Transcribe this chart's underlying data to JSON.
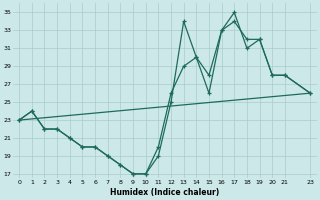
{
  "xlabel": "Humidex (Indice chaleur)",
  "bg_color": "#cce8e8",
  "line_color": "#1e6b5a",
  "grid_color": "#aacccc",
  "xlim": [
    -0.5,
    23.5
  ],
  "ylim": [
    16.5,
    36
  ],
  "yticks": [
    17,
    19,
    21,
    23,
    25,
    27,
    29,
    31,
    33,
    35
  ],
  "xticks": [
    0,
    1,
    2,
    3,
    4,
    5,
    6,
    7,
    8,
    9,
    10,
    11,
    12,
    13,
    14,
    15,
    16,
    17,
    18,
    19,
    20,
    21,
    23
  ],
  "line1_x": [
    0,
    1,
    2,
    3,
    4,
    5,
    6,
    7,
    8,
    9,
    10,
    11,
    12,
    13,
    14,
    15,
    16,
    17,
    18,
    19,
    20,
    21,
    23
  ],
  "line1_y": [
    23,
    24,
    22,
    22,
    21,
    20,
    20,
    19,
    18,
    17,
    17,
    19,
    25,
    34,
    30,
    26,
    33,
    35,
    31,
    32,
    28,
    28,
    26
  ],
  "line2_x": [
    0,
    1,
    2,
    3,
    4,
    5,
    6,
    7,
    8,
    9,
    10,
    11,
    12,
    13,
    14,
    15,
    16,
    17,
    18,
    19,
    20,
    21,
    23
  ],
  "line2_y": [
    23,
    24,
    22,
    22,
    21,
    20,
    20,
    19,
    18,
    17,
    17,
    20,
    26,
    29,
    30,
    28,
    33,
    34,
    32,
    32,
    28,
    28,
    26
  ],
  "line3_x": [
    0,
    23
  ],
  "line3_y": [
    23,
    26
  ]
}
